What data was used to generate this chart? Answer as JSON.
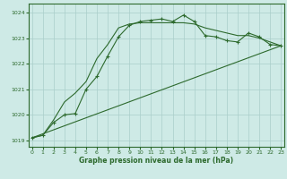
{
  "line1_x": [
    0,
    1,
    2,
    3,
    4,
    5,
    6,
    7,
    8,
    9,
    10,
    11,
    12,
    13,
    14,
    15,
    16,
    17,
    18,
    19,
    20,
    21,
    22,
    23
  ],
  "line1_y": [
    1019.1,
    1019.2,
    1019.7,
    1020.0,
    1020.05,
    1021.0,
    1021.5,
    1022.3,
    1023.05,
    1023.5,
    1023.65,
    1023.7,
    1023.75,
    1023.65,
    1023.9,
    1023.65,
    1023.1,
    1023.05,
    1022.9,
    1022.85,
    1023.2,
    1023.05,
    1022.75,
    1022.7
  ],
  "line2_x": [
    0,
    1,
    2,
    3,
    4,
    5,
    6,
    7,
    8,
    9,
    10,
    11,
    12,
    13,
    14,
    15,
    16,
    17,
    18,
    19,
    20,
    21,
    22,
    23
  ],
  "line2_y": [
    1019.1,
    1019.2,
    1019.8,
    1020.5,
    1020.85,
    1021.3,
    1022.2,
    1022.75,
    1023.4,
    1023.55,
    1023.6,
    1023.6,
    1023.6,
    1023.6,
    1023.6,
    1023.55,
    1023.4,
    1023.3,
    1023.2,
    1023.1,
    1023.1,
    1023.0,
    1022.85,
    1022.7
  ],
  "line3_x": [
    0,
    23
  ],
  "line3_y": [
    1019.1,
    1022.7
  ],
  "ylim": [
    1018.75,
    1024.35
  ],
  "xlim": [
    -0.3,
    23.3
  ],
  "yticks": [
    1019,
    1020,
    1021,
    1022,
    1023,
    1024
  ],
  "xticks": [
    0,
    1,
    2,
    3,
    4,
    5,
    6,
    7,
    8,
    9,
    10,
    11,
    12,
    13,
    14,
    15,
    16,
    17,
    18,
    19,
    20,
    21,
    22,
    23
  ],
  "xlabel": "Graphe pression niveau de la mer (hPa)",
  "bg_color": "#ceeae6",
  "grid_color": "#aaceca",
  "line_color": "#2d6a2d"
}
